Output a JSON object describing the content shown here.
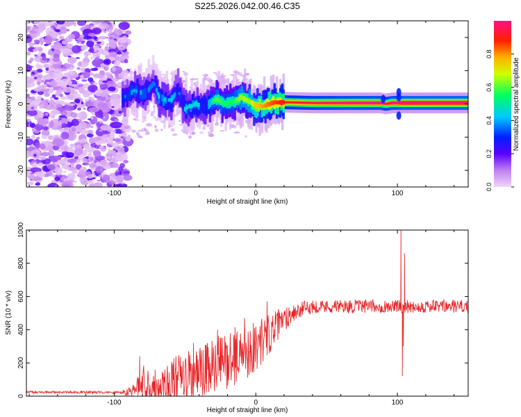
{
  "title": "S225.2026.042.00.46.C35",
  "chart_data": [
    {
      "type": "heatmap",
      "title": "S225.2026.042.00.46.C35",
      "xlabel": "Height of straight line (km)",
      "ylabel": "Frequency (Hz)",
      "xlim": [
        -162,
        150
      ],
      "ylim": [
        -25,
        25
      ],
      "x_ticks": [
        -100,
        0,
        100
      ],
      "x_tick_labels": [
        "-100",
        "0",
        "100"
      ],
      "y_ticks": [
        -20,
        -10,
        0,
        10,
        20
      ],
      "y_tick_labels": [
        "-20",
        "-10",
        "0",
        "10",
        "20"
      ],
      "colorbar": {
        "label": "Normalized spectral amplitude",
        "range": [
          0,
          1
        ],
        "ticks": [
          0.0,
          0.2,
          0.4,
          0.6,
          0.8
        ],
        "tick_labels": [
          "0.0",
          "0.2",
          "0.4",
          "0.6",
          "0.8"
        ],
        "colors": [
          "#f0d4f8",
          "#8b00ff",
          "#0000ff",
          "#00c8ff",
          "#00ff40",
          "#ffff00",
          "#ff8000",
          "#ff0000",
          "#ff1080"
        ]
      },
      "regions": [
        {
          "name": "noise",
          "x_range": [
            -162,
            -94
          ],
          "description_level": 0.15
        },
        {
          "name": "ridge",
          "x_range": [
            -94,
            150
          ]
        }
      ],
      "ridge_trace": [
        {
          "x": -94,
          "f": 1.5,
          "a": 0.3
        },
        {
          "x": -86,
          "f": 4.0,
          "a": 0.35
        },
        {
          "x": -78,
          "f": 3.0,
          "a": 0.35
        },
        {
          "x": -72,
          "f": 6.5,
          "a": 0.3
        },
        {
          "x": -68,
          "f": 1.5,
          "a": 0.4
        },
        {
          "x": -60,
          "f": 1.0,
          "a": 0.4
        },
        {
          "x": -55,
          "f": 4.5,
          "a": 0.3
        },
        {
          "x": -50,
          "f": -1.5,
          "a": 0.4
        },
        {
          "x": -42,
          "f": 0.0,
          "a": 0.4
        },
        {
          "x": -35,
          "f": -1.0,
          "a": 0.4
        },
        {
          "x": -28,
          "f": 1.5,
          "a": 0.55
        },
        {
          "x": -22,
          "f": 0.0,
          "a": 0.5
        },
        {
          "x": -16,
          "f": 0.5,
          "a": 0.5
        },
        {
          "x": -10,
          "f": 2.0,
          "a": 0.6
        },
        {
          "x": -4,
          "f": 0.5,
          "a": 0.6
        },
        {
          "x": 0,
          "f": -0.5,
          "a": 0.7
        },
        {
          "x": 6,
          "f": -0.5,
          "a": 0.75
        },
        {
          "x": 12,
          "f": 0.3,
          "a": 0.8
        },
        {
          "x": 20,
          "f": 0.5,
          "a": 0.85
        },
        {
          "x": 40,
          "f": 0.3,
          "a": 0.9
        },
        {
          "x": 70,
          "f": 0.3,
          "a": 0.95
        },
        {
          "x": 88,
          "f": 0.3,
          "a": 0.95
        },
        {
          "x": 92,
          "f": 0.0,
          "a": 0.9
        },
        {
          "x": 96,
          "f": 0.3,
          "a": 0.95
        },
        {
          "x": 100,
          "f": 0.3,
          "a": 0.95
        },
        {
          "x": 104,
          "f": 0.3,
          "a": 1.0
        },
        {
          "x": 150,
          "f": 0.3,
          "a": 1.0
        }
      ]
    },
    {
      "type": "line",
      "xlabel": "Height of straight line (km)",
      "ylabel": "SNR (10 * v/v)",
      "xlim": [
        -162,
        150
      ],
      "ylim": [
        0,
        1000
      ],
      "x_ticks": [
        -100,
        0,
        100
      ],
      "x_tick_labels": [
        "-100",
        "0",
        "100"
      ],
      "y_ticks": [
        0,
        200,
        400,
        600,
        800,
        1000
      ],
      "y_tick_labels": [
        "0",
        "200",
        "400",
        "600",
        "800",
        "1000"
      ],
      "series": [
        {
          "name": "SNR",
          "color": "#e8262a",
          "envelope": [
            {
              "x": -162,
              "base": 20,
              "amp": 15
            },
            {
              "x": -95,
              "base": 20,
              "amp": 15
            },
            {
              "x": -85,
              "base": 40,
              "amp": 40
            },
            {
              "x": -80,
              "base": 80,
              "amp": 120
            },
            {
              "x": -70,
              "base": 60,
              "amp": 100
            },
            {
              "x": -55,
              "base": 90,
              "amp": 160
            },
            {
              "x": -40,
              "base": 130,
              "amp": 170
            },
            {
              "x": -20,
              "base": 220,
              "amp": 180
            },
            {
              "x": 0,
              "base": 300,
              "amp": 160
            },
            {
              "x": 15,
              "base": 420,
              "amp": 100
            },
            {
              "x": 25,
              "base": 500,
              "amp": 60
            },
            {
              "x": 40,
              "base": 540,
              "amp": 40
            },
            {
              "x": 100,
              "base": 540,
              "amp": 40
            },
            {
              "x": 150,
              "base": 540,
              "amp": 40
            }
          ],
          "events": [
            {
              "x": 102.5,
              "y": 1000
            },
            {
              "x": 103.5,
              "y": 120
            },
            {
              "x": 105.0,
              "y": 860
            },
            {
              "x": 104.2,
              "y": 300
            }
          ],
          "series_peaks": [
            {
              "x": -82,
              "y": 240
            },
            {
              "x": -44,
              "y": 320
            },
            {
              "x": -27,
              "y": 400
            },
            {
              "x": -8,
              "y": 470
            },
            {
              "x": 8,
              "y": 570
            }
          ]
        }
      ]
    }
  ]
}
